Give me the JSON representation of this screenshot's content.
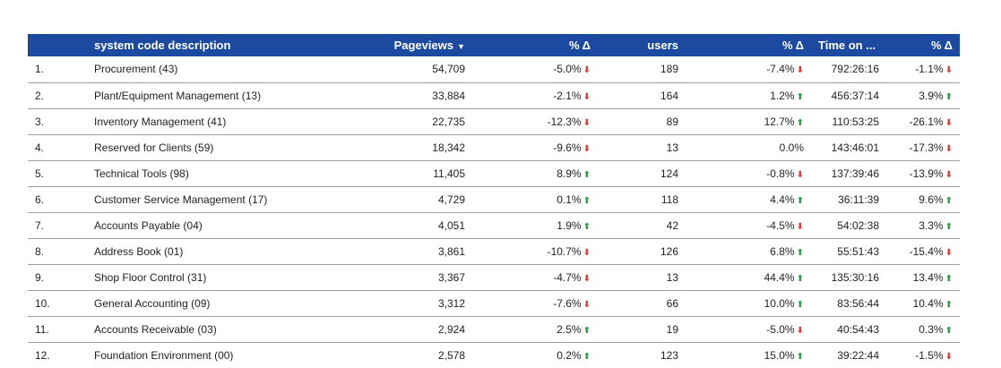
{
  "table": {
    "headers": {
      "description": "system code description",
      "pageviews": "Pageviews",
      "pv_delta": "% Δ",
      "users": "users",
      "users_delta": "% Δ",
      "time_on": "Time on ...",
      "time_delta": "% Δ"
    },
    "sort_icon": "caret-down-icon",
    "colors": {
      "header_bg": "#1c4aa0",
      "up": "#2e9e44",
      "down": "#e53935"
    },
    "rows": [
      {
        "idx": "1.",
        "desc": "Procurement (43)",
        "pageviews": "54,709",
        "pv_delta": "-5.0%",
        "pv_dir": "down",
        "users": "189",
        "u_delta": "-7.4%",
        "u_dir": "down",
        "time": "792:26:16",
        "t_delta": "-1.1%",
        "t_dir": "down"
      },
      {
        "idx": "2.",
        "desc": "Plant/Equipment Management (13)",
        "pageviews": "33,884",
        "pv_delta": "-2.1%",
        "pv_dir": "down",
        "users": "164",
        "u_delta": "1.2%",
        "u_dir": "up",
        "time": "456:37:14",
        "t_delta": "3.9%",
        "t_dir": "up"
      },
      {
        "idx": "3.",
        "desc": "Inventory Management (41)",
        "pageviews": "22,735",
        "pv_delta": "-12.3%",
        "pv_dir": "down",
        "users": "89",
        "u_delta": "12.7%",
        "u_dir": "up",
        "time": "110:53:25",
        "t_delta": "-26.1%",
        "t_dir": "down"
      },
      {
        "idx": "4.",
        "desc": "Reserved for Clients (59)",
        "pageviews": "18,342",
        "pv_delta": "-9.6%",
        "pv_dir": "down",
        "users": "13",
        "u_delta": "0.0%",
        "u_dir": "none",
        "time": "143:46:01",
        "t_delta": "-17.3%",
        "t_dir": "down"
      },
      {
        "idx": "5.",
        "desc": "Technical Tools (98)",
        "pageviews": "11,405",
        "pv_delta": "8.9%",
        "pv_dir": "up",
        "users": "124",
        "u_delta": "-0.8%",
        "u_dir": "down",
        "time": "137:39:46",
        "t_delta": "-13.9%",
        "t_dir": "down"
      },
      {
        "idx": "6.",
        "desc": "Customer Service Management (17)",
        "pageviews": "4,729",
        "pv_delta": "0.1%",
        "pv_dir": "up",
        "users": "118",
        "u_delta": "4.4%",
        "u_dir": "up",
        "time": "36:11:39",
        "t_delta": "9.6%",
        "t_dir": "up"
      },
      {
        "idx": "7.",
        "desc": "Accounts Payable (04)",
        "pageviews": "4,051",
        "pv_delta": "1.9%",
        "pv_dir": "up",
        "users": "42",
        "u_delta": "-4.5%",
        "u_dir": "down",
        "time": "54:02:38",
        "t_delta": "3.3%",
        "t_dir": "up"
      },
      {
        "idx": "8.",
        "desc": "Address Book (01)",
        "pageviews": "3,861",
        "pv_delta": "-10.7%",
        "pv_dir": "down",
        "users": "126",
        "u_delta": "6.8%",
        "u_dir": "up",
        "time": "55:51:43",
        "t_delta": "-15.4%",
        "t_dir": "down"
      },
      {
        "idx": "9.",
        "desc": "Shop Floor Control (31)",
        "pageviews": "3,367",
        "pv_delta": "-4.7%",
        "pv_dir": "down",
        "users": "13",
        "u_delta": "44.4%",
        "u_dir": "up",
        "time": "135:30:16",
        "t_delta": "13.4%",
        "t_dir": "up"
      },
      {
        "idx": "10.",
        "desc": "General Accounting (09)",
        "pageviews": "3,312",
        "pv_delta": "-7.6%",
        "pv_dir": "down",
        "users": "66",
        "u_delta": "10.0%",
        "u_dir": "up",
        "time": "83:56:44",
        "t_delta": "10.4%",
        "t_dir": "up"
      },
      {
        "idx": "11.",
        "desc": "Accounts Receivable (03)",
        "pageviews": "2,924",
        "pv_delta": "2.5%",
        "pv_dir": "up",
        "users": "19",
        "u_delta": "-5.0%",
        "u_dir": "down",
        "time": "40:54:43",
        "t_delta": "0.3%",
        "t_dir": "up"
      },
      {
        "idx": "12.",
        "desc": "Foundation Environment (00)",
        "pageviews": "2,578",
        "pv_delta": "0.2%",
        "pv_dir": "up",
        "users": "123",
        "u_delta": "15.0%",
        "u_dir": "up",
        "time": "39:22:44",
        "t_delta": "-1.5%",
        "t_dir": "down"
      }
    ]
  }
}
